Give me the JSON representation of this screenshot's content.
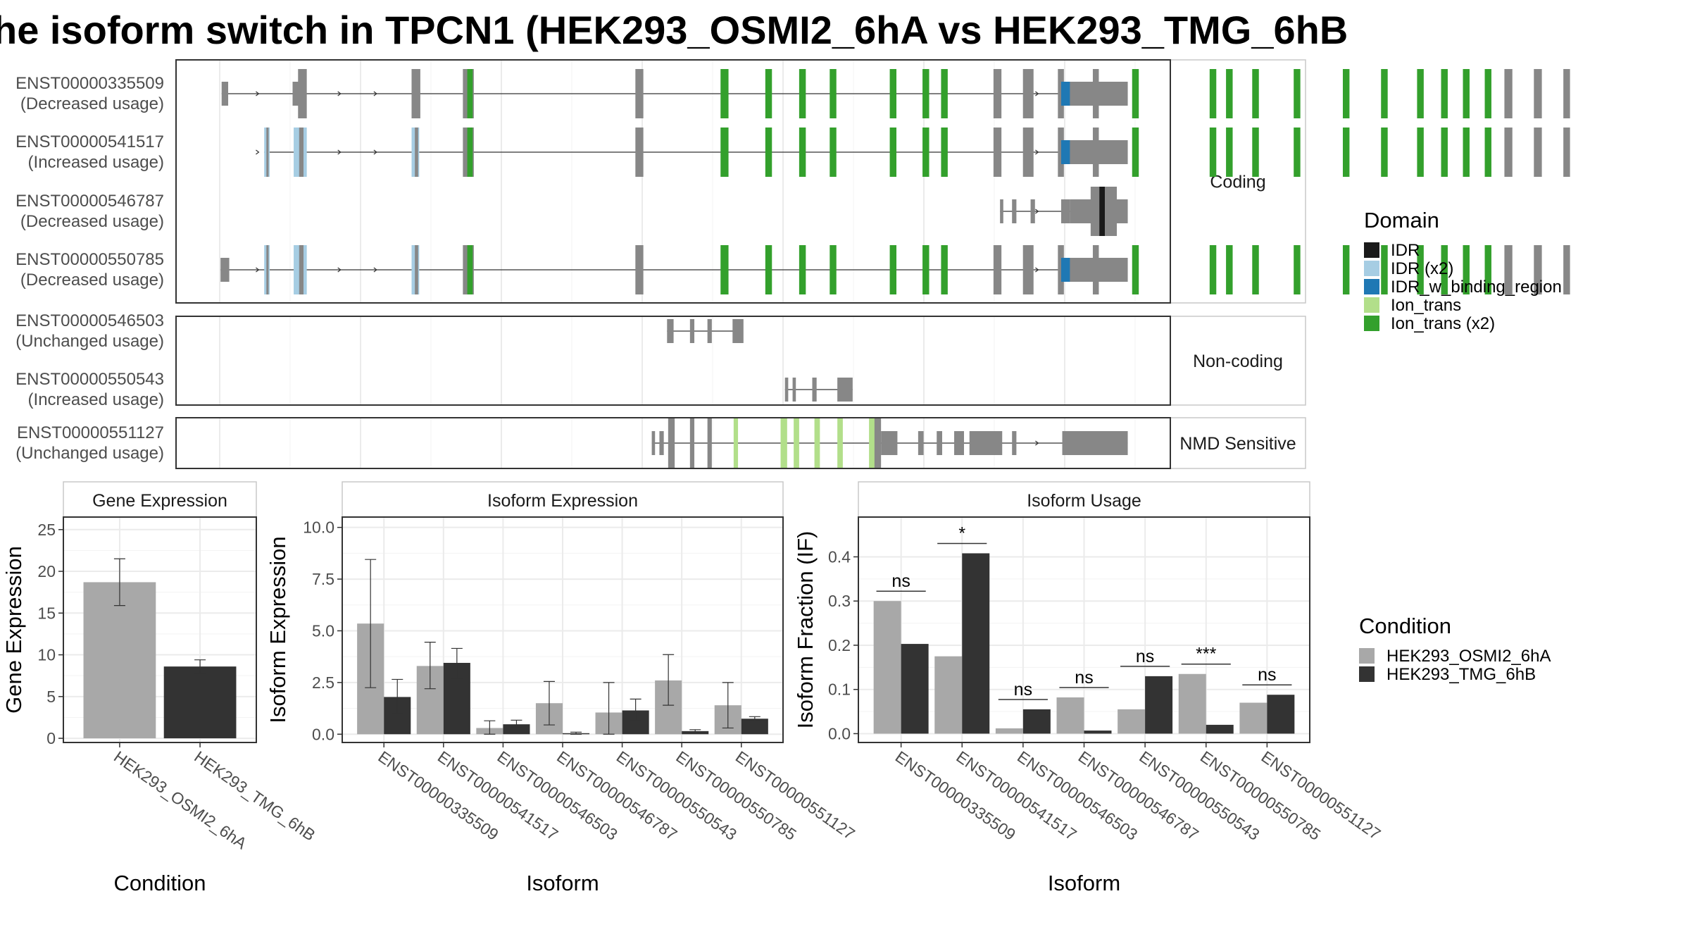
{
  "title": "he isoform switch in TPCN1 (HEK293_OSMI2_6hA vs HEK293_TMG_6hB",
  "colors": {
    "exon": "#878787",
    "idr": "#1a1a1a",
    "idr_x2": "#a6cde3",
    "idr_w_binding_region": "#1f78b4",
    "ion_trans": "#b2df8a",
    "ion_trans_x2": "#33a02c",
    "condition_a": "#a8a8a8",
    "condition_b": "#333333"
  },
  "transcripts": [
    {
      "id": "ENST00000335509",
      "usage": "(Decreased usage)",
      "group": "coding"
    },
    {
      "id": "ENST00000541517",
      "usage": "(Increased usage)",
      "group": "coding"
    },
    {
      "id": "ENST00000546787",
      "usage": "(Decreased usage)",
      "group": "coding"
    },
    {
      "id": "ENST00000550785",
      "usage": "(Decreased usage)",
      "group": "coding"
    },
    {
      "id": "ENST00000546503",
      "usage": "(Unchanged usage)",
      "group": "noncoding"
    },
    {
      "id": "ENST00000550543",
      "usage": "(Increased usage)",
      "group": "noncoding"
    },
    {
      "id": "ENST00000551127",
      "usage": "(Unchanged usage)",
      "group": "nmd"
    }
  ],
  "groups": {
    "coding": "Coding",
    "noncoding": "Non-coding",
    "nmd": "NMD Sensitive"
  },
  "domain_legend": {
    "title": "Domain",
    "items": [
      {
        "label": "IDR",
        "color": "#1a1a1a"
      },
      {
        "label": "IDR (x2)",
        "color": "#a6cde3"
      },
      {
        "label": "IDR_w_binding_region",
        "color": "#1f78b4"
      },
      {
        "label": "Ion_trans",
        "color": "#b2df8a"
      },
      {
        "label": "Ion_trans (x2)",
        "color": "#33a02c"
      }
    ]
  },
  "condition_legend": {
    "title": "Condition",
    "items": [
      {
        "label": "HEK293_OSMI2_6hA",
        "color": "#a8a8a8"
      },
      {
        "label": "HEK293_TMG_6hB",
        "color": "#333333"
      }
    ]
  },
  "chart_data": [
    {
      "type": "bar",
      "title": "Gene Expression",
      "xlabel": "Condition",
      "ylabel": "Gene Expression",
      "categories": [
        "HEK293_OSMI2_6hA",
        "HEK293_TMG_6hB"
      ],
      "values": [
        18.7,
        8.6
      ],
      "error_low": [
        15.9,
        7.8
      ],
      "error_high": [
        21.5,
        9.4
      ],
      "ylim": [
        -0.5,
        26.5
      ],
      "yticks": [
        0,
        5,
        10,
        15,
        20,
        25
      ]
    },
    {
      "type": "bar",
      "title": "Isoform Expression",
      "xlabel": "Isoform",
      "ylabel": "Isoform Expression",
      "categories": [
        "ENST00000335509",
        "ENST00000541517",
        "ENST00000546503",
        "ENST00000546787",
        "ENST00000550543",
        "ENST00000550785",
        "ENST00000551127"
      ],
      "series": [
        {
          "name": "HEK293_OSMI2_6hA",
          "values": [
            5.35,
            3.3,
            0.3,
            1.5,
            1.05,
            2.6,
            1.4
          ],
          "error_low": [
            2.25,
            2.2,
            0.0,
            0.45,
            0.0,
            1.4,
            0.3
          ],
          "error_high": [
            8.45,
            4.45,
            0.65,
            2.55,
            2.5,
            3.85,
            2.5
          ]
        },
        {
          "name": "HEK293_TMG_6hB",
          "values": [
            1.8,
            3.45,
            0.48,
            0.05,
            1.15,
            0.15,
            0.75
          ],
          "error_low": [
            1.0,
            2.7,
            0.3,
            0.0,
            0.65,
            0.08,
            0.65
          ],
          "error_high": [
            2.65,
            4.15,
            0.68,
            0.1,
            1.7,
            0.22,
            0.85
          ]
        }
      ],
      "ylim": [
        -0.4,
        10.5
      ],
      "yticks": [
        0.0,
        2.5,
        5.0,
        7.5,
        10.0
      ]
    },
    {
      "type": "bar",
      "title": "Isoform Usage",
      "xlabel": "Isoform",
      "ylabel": "Isoform Fraction (IF)",
      "categories": [
        "ENST00000335509",
        "ENST00000541517",
        "ENST00000546503",
        "ENST00000546787",
        "ENST00000550543",
        "ENST00000550785",
        "ENST00000551127"
      ],
      "series": [
        {
          "name": "HEK293_OSMI2_6hA",
          "values": [
            0.3,
            0.175,
            0.012,
            0.082,
            0.055,
            0.135,
            0.07
          ]
        },
        {
          "name": "HEK293_TMG_6hB",
          "values": [
            0.203,
            0.408,
            0.055,
            0.007,
            0.13,
            0.02,
            0.088
          ]
        }
      ],
      "significance": [
        "ns",
        "*",
        "ns",
        "ns",
        "ns",
        "***",
        "ns"
      ],
      "ylim": [
        -0.02,
        0.49
      ],
      "yticks": [
        0.0,
        0.1,
        0.2,
        0.3,
        0.4
      ]
    }
  ]
}
